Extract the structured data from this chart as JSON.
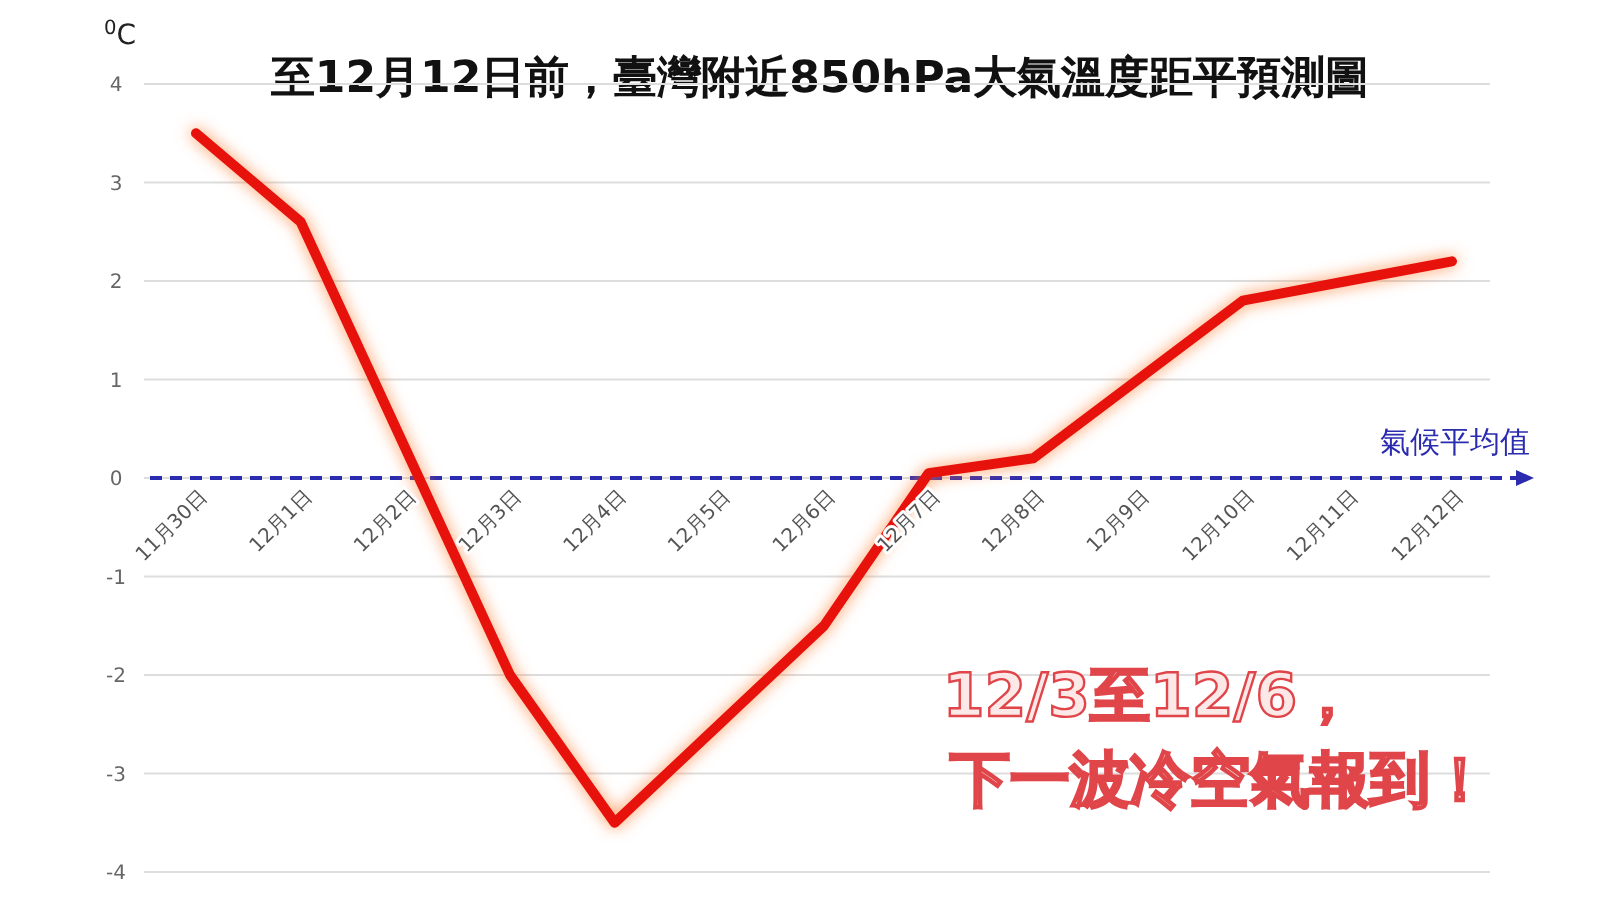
{
  "chart_data": {
    "type": "line",
    "title": "至12月12日前，臺灣附近850hPa大氣溫度距平預測圖",
    "ylabel": "$^{0}$C",
    "categories": [
      "11月30日",
      "12月1日",
      "12月2日",
      "12月3日",
      "12月4日",
      "12月5日",
      "12月6日",
      "12月7日",
      "12月8日",
      "12月9日",
      "12月10日",
      "12月11日",
      "12月12日"
    ],
    "series": [
      {
        "color": "#e8120c",
        "values": [
          3.5,
          2.6,
          0.3,
          -2,
          -3.5,
          -2.5,
          -1.5,
          0.05,
          0.2,
          1.0,
          1.8,
          2.0,
          2.2
        ]
      }
    ],
    "ylim": [
      -4,
      4
    ],
    "yticks": [
      -4,
      -3,
      -2,
      -1,
      0,
      1,
      2,
      3,
      4
    ],
    "grid": "y",
    "marker": "none",
    "line_style": "solid",
    "ref_lines": [
      {
        "axis": "y",
        "value": 0,
        "label": "氣候平均值",
        "color": "#2b2bb0",
        "line_style": "dashed"
      }
    ],
    "annotations": [
      "12/3至12/6，",
      "下一波冷空氣報到！"
    ]
  }
}
